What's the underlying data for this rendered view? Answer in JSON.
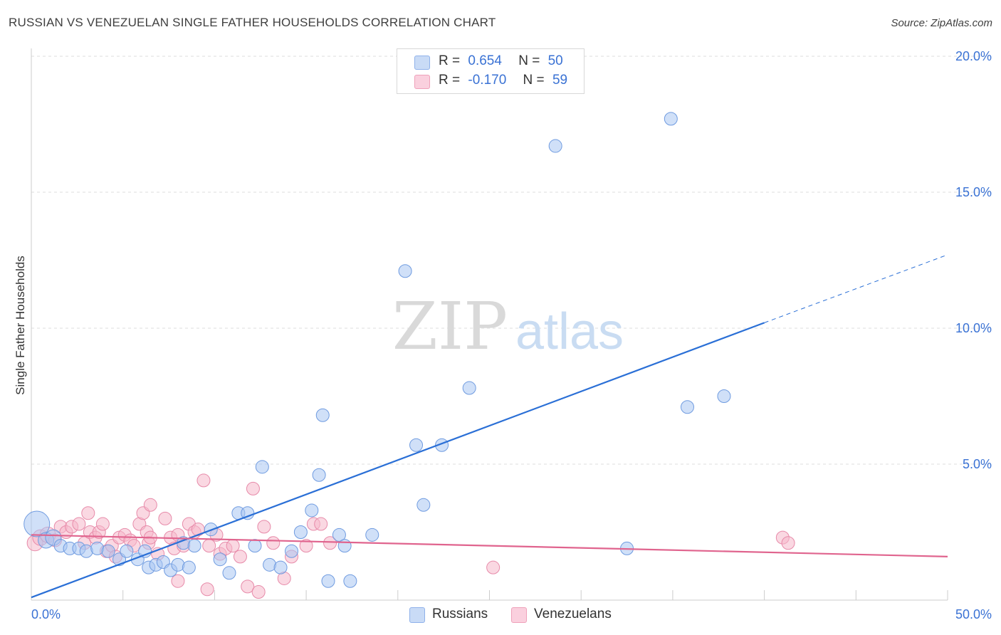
{
  "title": "RUSSIAN VS VENEZUELAN SINGLE FATHER HOUSEHOLDS CORRELATION CHART",
  "source": "Source: ZipAtlas.com",
  "watermark": {
    "zip": "ZIP",
    "atlas": "atlas"
  },
  "legend": {
    "rows": [
      {
        "r_label": "R =",
        "r_value": "0.654",
        "n_label": "N =",
        "n_value": "50",
        "color": "#a9c6f2"
      },
      {
        "r_label": "R =",
        "r_value": "-0.170",
        "n_label": "N =",
        "n_value": "59",
        "color": "#f5b8cb"
      }
    ]
  },
  "chart_data": {
    "type": "scatter",
    "title": "RUSSIAN VS VENEZUELAN SINGLE FATHER HOUSEHOLDS CORRELATION CHART",
    "xlabel": "",
    "ylabel": "Single Father Households",
    "xlim": [
      0,
      50
    ],
    "ylim": [
      0,
      20
    ],
    "x_tick_labels": [
      "0.0%",
      "50.0%"
    ],
    "y_ticks": [
      5,
      10,
      15,
      20
    ],
    "y_tick_labels": [
      "5.0%",
      "10.0%",
      "15.0%",
      "20.0%"
    ],
    "grid": true,
    "series": [
      {
        "name": "Russians",
        "color": "#a9c6f2",
        "stroke": "#6f9be0",
        "line_color": "#2a6fd6",
        "trend": {
          "x0": 0,
          "y0": 0.1,
          "x1": 40,
          "y1": 10.2,
          "dash_to_x": 50,
          "dash_to_y": 12.7
        },
        "points": [
          [
            0.3,
            2.8,
            18
          ],
          [
            0.8,
            2.2,
            11
          ],
          [
            1.2,
            2.3,
            11
          ],
          [
            1.6,
            2.0,
            9
          ],
          [
            2.1,
            1.9,
            9
          ],
          [
            2.6,
            1.9,
            9
          ],
          [
            3.0,
            1.8,
            9
          ],
          [
            3.6,
            1.9,
            9
          ],
          [
            4.2,
            1.8,
            9
          ],
          [
            4.8,
            1.5,
            9
          ],
          [
            5.2,
            1.8,
            9
          ],
          [
            5.8,
            1.5,
            9
          ],
          [
            6.2,
            1.8,
            9
          ],
          [
            6.4,
            1.2,
            9
          ],
          [
            6.8,
            1.3,
            9
          ],
          [
            7.2,
            1.4,
            9
          ],
          [
            7.6,
            1.1,
            9
          ],
          [
            8.0,
            1.3,
            9
          ],
          [
            8.6,
            1.2,
            9
          ],
          [
            8.3,
            2.1,
            9
          ],
          [
            8.9,
            2.0,
            9
          ],
          [
            9.8,
            2.6,
            9
          ],
          [
            10.3,
            1.5,
            9
          ],
          [
            10.8,
            1.0,
            9
          ],
          [
            11.3,
            3.2,
            9
          ],
          [
            11.8,
            3.2,
            9
          ],
          [
            12.2,
            2.0,
            9
          ],
          [
            12.6,
            4.9,
            9
          ],
          [
            13.0,
            1.3,
            9
          ],
          [
            13.6,
            1.2,
            9
          ],
          [
            14.2,
            1.8,
            9
          ],
          [
            14.7,
            2.5,
            9
          ],
          [
            15.3,
            3.3,
            9
          ],
          [
            15.7,
            4.6,
            9
          ],
          [
            15.9,
            6.8,
            9
          ],
          [
            16.2,
            0.7,
            9
          ],
          [
            16.8,
            2.4,
            9
          ],
          [
            17.1,
            2.0,
            9
          ],
          [
            17.4,
            0.7,
            9
          ],
          [
            18.6,
            2.4,
            9
          ],
          [
            20.4,
            12.1,
            9
          ],
          [
            21.0,
            5.7,
            9
          ],
          [
            21.4,
            3.5,
            9
          ],
          [
            22.4,
            5.7,
            9
          ],
          [
            23.9,
            7.8,
            9
          ],
          [
            28.6,
            16.7,
            9
          ],
          [
            32.5,
            1.9,
            9
          ],
          [
            34.9,
            17.7,
            9
          ],
          [
            35.8,
            7.1,
            9
          ],
          [
            37.8,
            7.5,
            9
          ]
        ]
      },
      {
        "name": "Venezuelans",
        "color": "#f5b8cb",
        "stroke": "#e78aa9",
        "line_color": "#e0648e",
        "trend": {
          "x0": 0,
          "y0": 2.4,
          "x1": 50,
          "y1": 1.6
        },
        "points": [
          [
            0.2,
            2.1,
            11
          ],
          [
            0.5,
            2.3,
            11
          ],
          [
            0.9,
            2.4,
            11
          ],
          [
            1.3,
            2.2,
            9
          ],
          [
            1.6,
            2.7,
            9
          ],
          [
            1.9,
            2.5,
            9
          ],
          [
            2.2,
            2.7,
            9
          ],
          [
            2.6,
            2.8,
            9
          ],
          [
            2.9,
            2.1,
            9
          ],
          [
            3.2,
            2.5,
            9
          ],
          [
            3.1,
            3.2,
            9
          ],
          [
            3.5,
            2.3,
            9
          ],
          [
            3.7,
            2.5,
            9
          ],
          [
            3.9,
            2.8,
            9
          ],
          [
            4.1,
            1.8,
            9
          ],
          [
            4.4,
            2.0,
            9
          ],
          [
            4.6,
            1.6,
            9
          ],
          [
            4.8,
            2.3,
            9
          ],
          [
            5.1,
            2.4,
            9
          ],
          [
            5.4,
            2.2,
            9
          ],
          [
            5.6,
            2.0,
            9
          ],
          [
            5.9,
            2.8,
            9
          ],
          [
            6.1,
            3.2,
            9
          ],
          [
            6.3,
            2.5,
            9
          ],
          [
            6.5,
            3.5,
            9
          ],
          [
            6.4,
            2.1,
            9
          ],
          [
            6.9,
            1.7,
            9
          ],
          [
            7.3,
            3.0,
            9
          ],
          [
            7.6,
            2.3,
            9
          ],
          [
            7.8,
            1.9,
            9
          ],
          [
            8.0,
            2.4,
            9
          ],
          [
            8.3,
            2.0,
            9
          ],
          [
            8.6,
            2.8,
            9
          ],
          [
            8.9,
            2.5,
            9
          ],
          [
            9.1,
            2.6,
            9
          ],
          [
            9.4,
            4.4,
            9
          ],
          [
            9.7,
            2.0,
            9
          ],
          [
            10.1,
            2.4,
            9
          ],
          [
            10.3,
            1.7,
            9
          ],
          [
            10.6,
            1.9,
            9
          ],
          [
            11.0,
            2.0,
            9
          ],
          [
            11.4,
            1.6,
            9
          ],
          [
            11.8,
            0.5,
            9
          ],
          [
            12.1,
            4.1,
            9
          ],
          [
            12.4,
            0.3,
            9
          ],
          [
            12.7,
            2.7,
            9
          ],
          [
            13.2,
            2.1,
            9
          ],
          [
            13.8,
            0.8,
            9
          ],
          [
            14.2,
            1.6,
            9
          ],
          [
            15.0,
            2.0,
            9
          ],
          [
            15.4,
            2.8,
            9
          ],
          [
            15.8,
            2.8,
            9
          ],
          [
            16.3,
            2.1,
            9
          ],
          [
            8.0,
            0.7,
            9
          ],
          [
            9.6,
            0.4,
            9
          ],
          [
            25.2,
            1.2,
            9
          ],
          [
            41.0,
            2.3,
            9
          ],
          [
            41.3,
            2.1,
            9
          ],
          [
            6.5,
            2.3,
            9
          ]
        ]
      }
    ]
  }
}
